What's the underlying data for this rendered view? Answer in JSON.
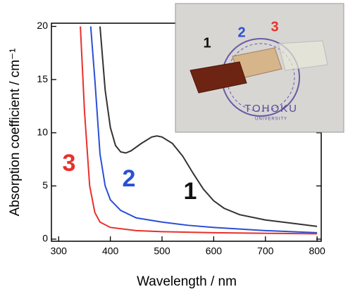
{
  "chart_data": {
    "type": "line",
    "xlabel": "Wavelength / nm",
    "ylabel": "Absorption coefficient / cm⁻¹",
    "xlim": [
      286,
      808
    ],
    "ylim": [
      -0.2,
      20.3
    ],
    "xticks": [
      300,
      400,
      500,
      600,
      700,
      800
    ],
    "yticks": [
      0,
      5,
      10,
      15,
      20
    ],
    "series": [
      {
        "name": "1",
        "color": "#333333",
        "x": [
          380,
          390,
          400,
          410,
          420,
          430,
          440,
          460,
          480,
          490,
          500,
          520,
          540,
          560,
          580,
          600,
          620,
          650,
          700,
          750,
          800
        ],
        "values": [
          20,
          14,
          10.5,
          8.8,
          8.2,
          8.1,
          8.3,
          9.0,
          9.6,
          9.7,
          9.6,
          9.0,
          7.8,
          6.2,
          4.7,
          3.6,
          2.9,
          2.3,
          1.8,
          1.5,
          1.2
        ]
      },
      {
        "name": "2",
        "color": "#2a4fd6",
        "x": [
          362,
          370,
          380,
          390,
          400,
          420,
          450,
          500,
          550,
          600,
          700,
          800
        ],
        "values": [
          20,
          15,
          8,
          5,
          3.7,
          2.7,
          2.0,
          1.6,
          1.3,
          1.1,
          0.8,
          0.6
        ]
      },
      {
        "name": "3",
        "color": "#e8302a",
        "x": [
          342,
          350,
          360,
          370,
          380,
          400,
          450,
          500,
          600,
          800
        ],
        "values": [
          20,
          12,
          5,
          2.5,
          1.6,
          1.1,
          0.8,
          0.7,
          0.6,
          0.5
        ]
      }
    ],
    "inset_text": [
      "TOHOKU",
      "UNIVERSITY"
    ]
  }
}
